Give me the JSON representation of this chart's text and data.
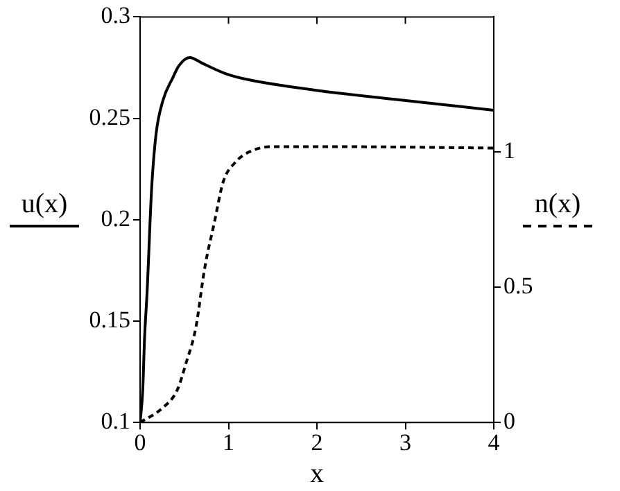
{
  "chart_data": {
    "type": "line",
    "xlabel": "x",
    "ylabel": "u(x)",
    "y2label": "n(x)",
    "xlim": [
      0,
      4
    ],
    "xticks": [
      0,
      1,
      2,
      3,
      4
    ],
    "ylim": [
      0.1,
      0.3
    ],
    "yticks": [
      0.1,
      0.15,
      0.2,
      0.25,
      0.3
    ],
    "y2lim": [
      0,
      1.5
    ],
    "y2ticks": [
      0,
      0.5,
      1
    ],
    "grid": false,
    "legend": false,
    "marker": "none",
    "series": [
      {
        "color": "#000000",
        "line_style": "solid",
        "x": [
          0,
          0.03,
          0.05,
          0.08,
          0.13,
          0.18,
          0.26,
          0.37,
          0.44,
          0.56,
          0.71,
          0.97,
          1.23,
          1.96,
          2.95,
          4
        ],
        "values": [
          0.1,
          0.116,
          0.141,
          0.165,
          0.215,
          0.242,
          0.259,
          0.27,
          0.276,
          0.28,
          0.277,
          0.272,
          0.269,
          0.264,
          0.259,
          0.254
        ]
      },
      {
        "color": "#000000",
        "line_style": "dashed",
        "axis": "y2",
        "x": [
          0,
          0.24,
          0.42,
          0.52,
          0.63,
          0.73,
          0.84,
          0.94,
          1.07,
          1.23,
          1.49,
          2.27,
          4
        ],
        "values": [
          0,
          0.05,
          0.12,
          0.22,
          0.35,
          0.57,
          0.74,
          0.89,
          0.96,
          1.0,
          1.02,
          1.02,
          1.015
        ]
      }
    ]
  }
}
